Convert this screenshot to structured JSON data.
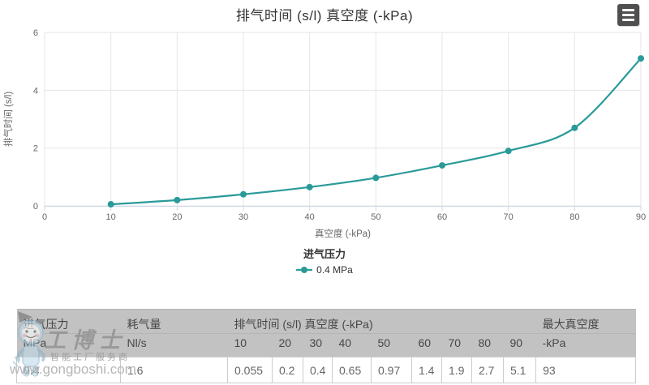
{
  "chart": {
    "title": "排气时间 (s/l) 真空度 (-kPa)",
    "menu_icon": "hamburger-menu-icon",
    "x_axis": {
      "title": "真空度 (-kPa)",
      "ticks": [
        0,
        10,
        20,
        30,
        40,
        50,
        60,
        70,
        80,
        90
      ]
    },
    "y_axis": {
      "title": "排气时间 (s/l)",
      "ticks": [
        0,
        2,
        4,
        6
      ]
    },
    "legend": {
      "title": "进气压力",
      "item_label": "0.4 MPa"
    }
  },
  "chart_data": {
    "type": "line",
    "x": [
      10,
      20,
      30,
      40,
      50,
      60,
      70,
      80,
      90
    ],
    "series": [
      {
        "name": "0.4 MPa",
        "values": [
          0.055,
          0.2,
          0.4,
          0.65,
          0.97,
          1.4,
          1.9,
          2.7,
          5.1
        ],
        "color": "#2a9a99"
      }
    ],
    "title": "排气时间 (s/l) 真空度 (-kPa)",
    "xlabel": "真空度 (-kPa)",
    "ylabel": "排气时间 (s/l)",
    "xlim": [
      0,
      90
    ],
    "ylim": [
      0,
      6
    ],
    "grid": true,
    "legend_position": "bottom-center"
  },
  "table": {
    "header_row1": [
      {
        "label": "进气压力",
        "colspan": 1
      },
      {
        "label": "耗气量",
        "colspan": 1
      },
      {
        "label": "排气时间 (s/l) 真空度 (-kPa)",
        "colspan": 9
      },
      {
        "label": "最大真空度",
        "colspan": 1
      }
    ],
    "header_row2": [
      "MPa",
      "Nl/s",
      "10",
      "20",
      "30",
      "40",
      "50",
      "60",
      "70",
      "80",
      "90",
      "-kPa"
    ],
    "rows": [
      [
        "0.4",
        "1.6",
        "0.055",
        "0.2",
        "0.4",
        "0.65",
        "0.97",
        "1.4",
        "1.9",
        "2.7",
        "5.1",
        "93"
      ]
    ]
  },
  "watermark": {
    "brand": "工博士",
    "tagline": "智能工厂服务商",
    "url": "www.gongboshi.com"
  },
  "colors": {
    "series": "#2a9a99",
    "grid": "#e6e6e6",
    "axis": "#ccd6eb",
    "tick_label": "#666666",
    "axis_title": "#666666",
    "chart_title": "#333333",
    "table_header_bg": "#c2c2c2"
  }
}
